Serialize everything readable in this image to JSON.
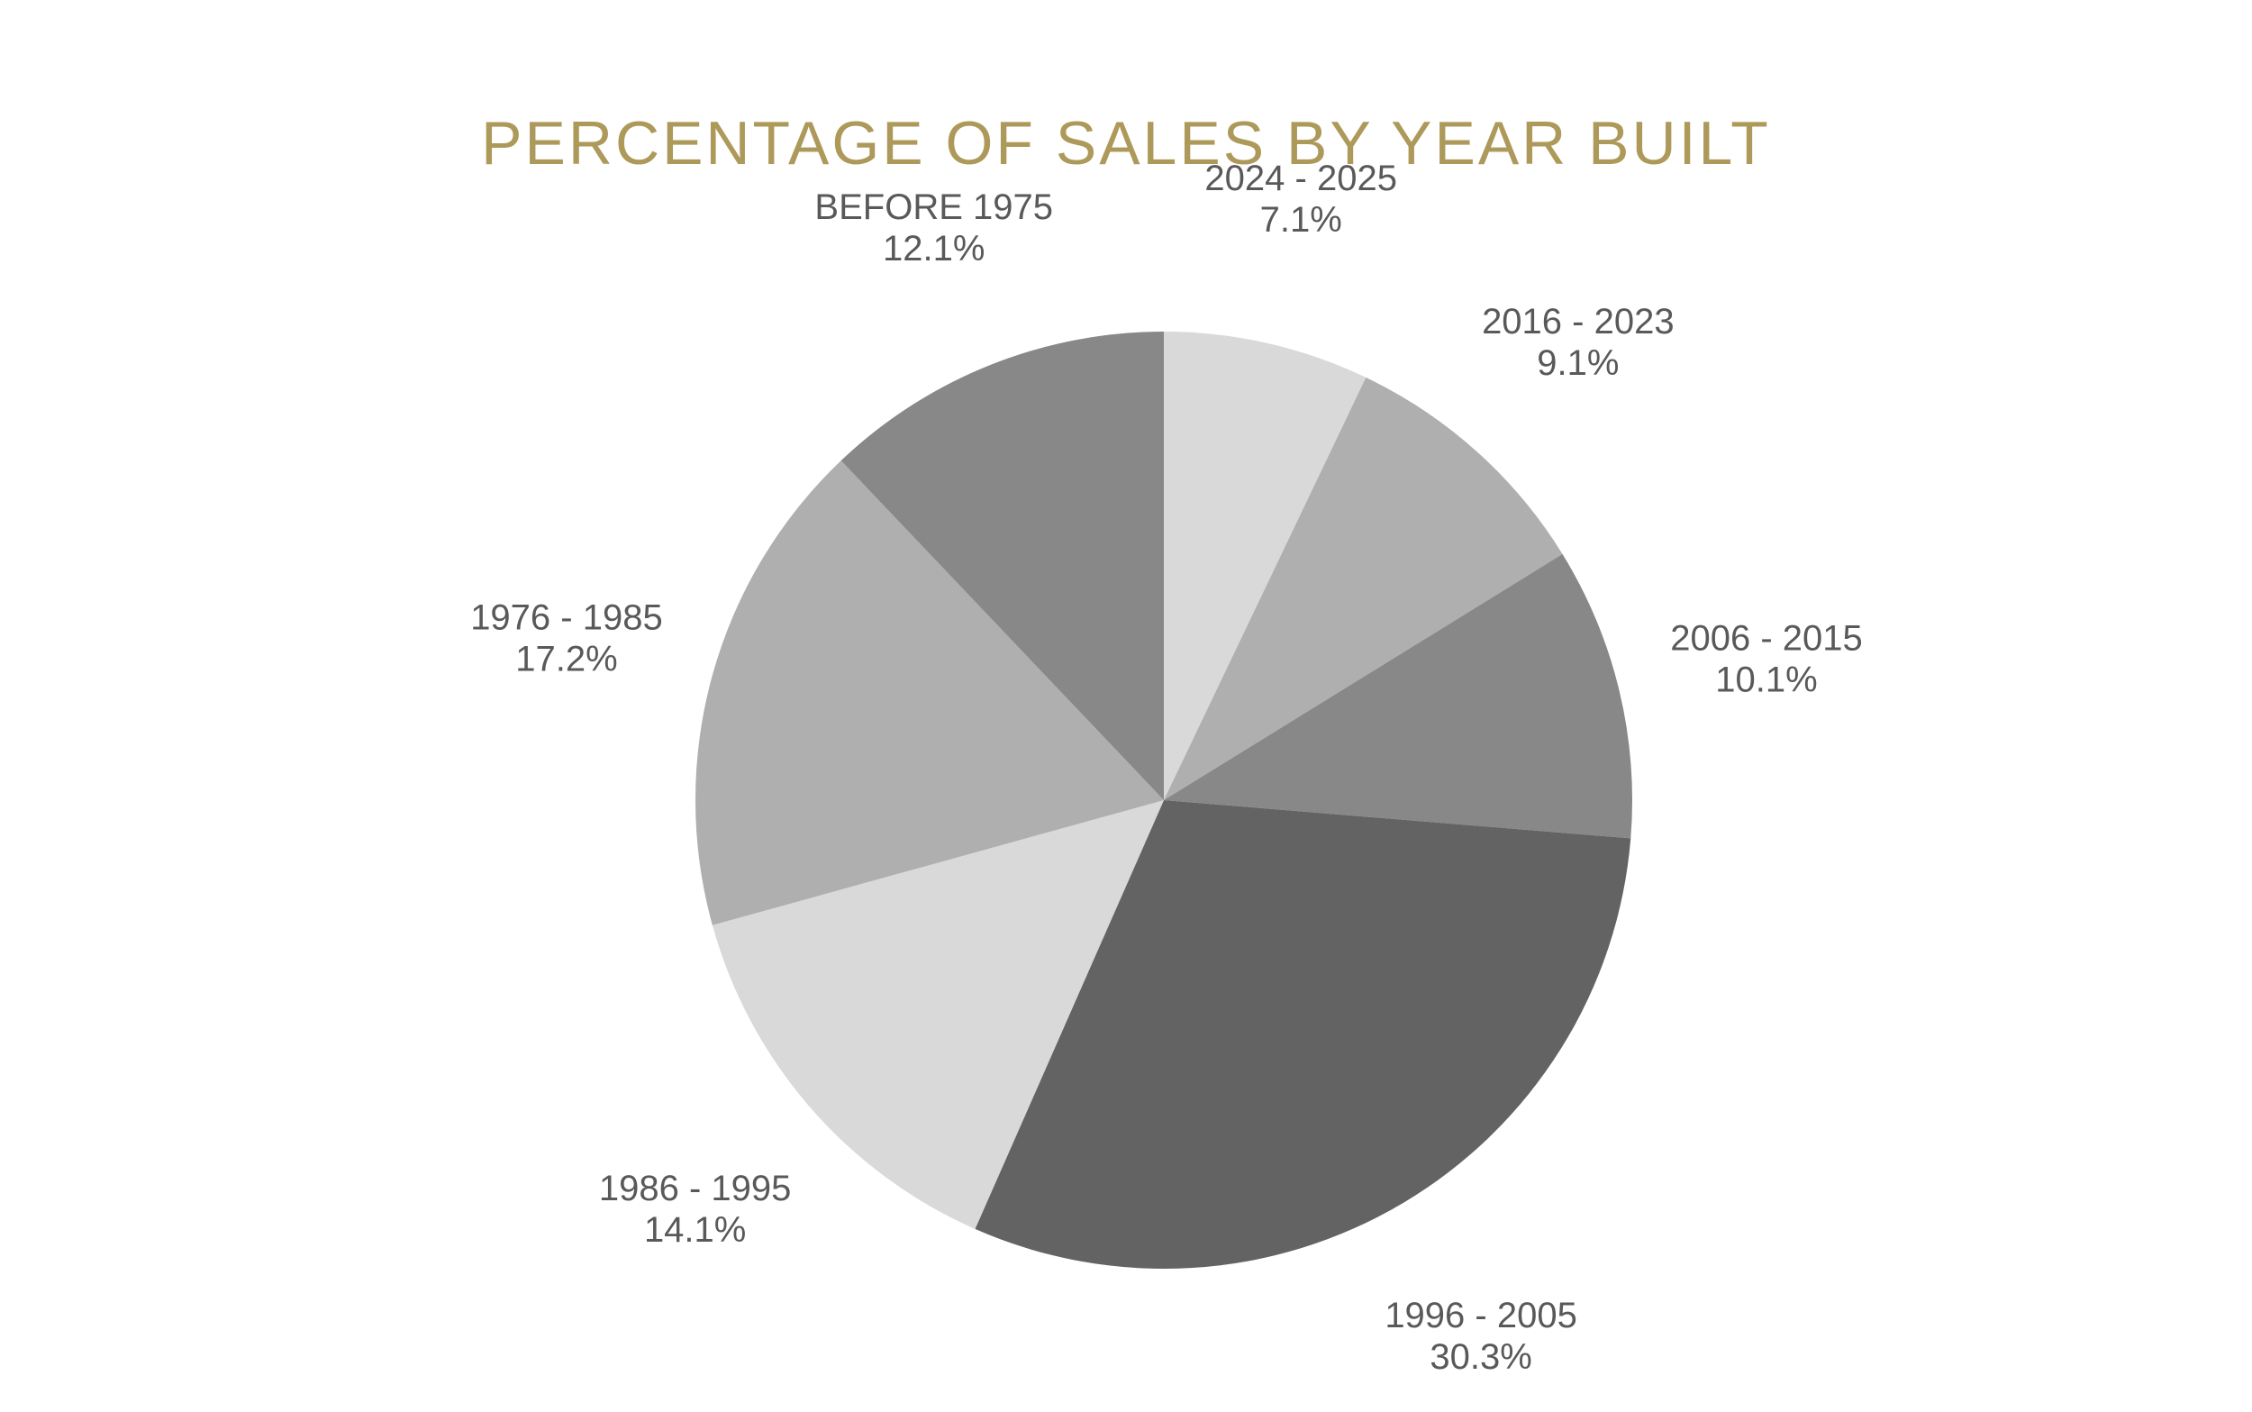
{
  "chart_data": {
    "type": "pie",
    "title": "PERCENTAGE OF SALES BY YEAR BUILT",
    "categories": [
      "2024 - 2025",
      "2016 - 2023",
      "2006 - 2015",
      "1996 - 2005",
      "1986 - 1995",
      "1976 - 1985",
      "BEFORE 1975"
    ],
    "values": [
      7.1,
      9.1,
      10.1,
      30.3,
      14.1,
      17.2,
      12.1
    ],
    "value_labels": [
      "7.1%",
      "9.1%",
      "10.1%",
      "30.3%",
      "14.1%",
      "17.2%",
      "12.1%"
    ],
    "colors": [
      "#d9d9d9",
      "#afafaf",
      "#888888",
      "#636363",
      "#d9d9d9",
      "#afafaf",
      "#888888"
    ],
    "title_color": "#ad9a5a",
    "label_color": "#595959",
    "start_angle": "12 o'clock",
    "direction": "clockwise",
    "legend": "none"
  }
}
